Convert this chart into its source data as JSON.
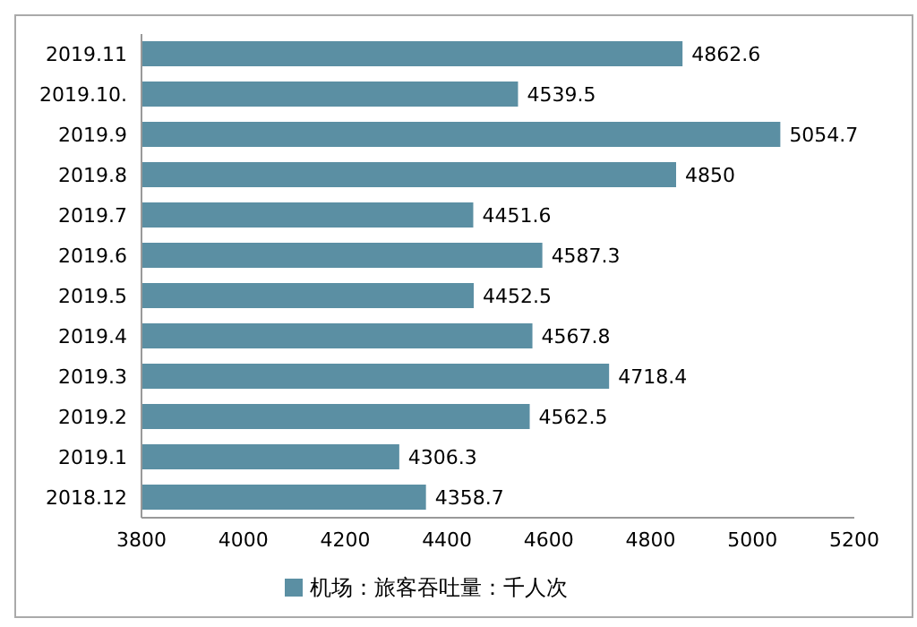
{
  "chart_data": {
    "type": "bar",
    "orientation": "horizontal",
    "categories": [
      "2019.11",
      "2019.10.",
      "2019.9",
      "2019.8",
      "2019.7",
      "2019.6",
      "2019.5",
      "2019.4",
      "2019.3",
      "2019.2",
      "2019.1",
      "2018.12"
    ],
    "series": [
      {
        "name": "机场：旅客吞吐量：千人次",
        "color": "#5b8fa3",
        "values": [
          4862.6,
          4539.5,
          5054.7,
          4850,
          4451.6,
          4587.3,
          4452.5,
          4567.8,
          4718.4,
          4562.5,
          4306.3,
          4358.7
        ]
      }
    ],
    "xlim": [
      3800,
      5200
    ],
    "xticks": [
      3800,
      4000,
      4200,
      4400,
      4600,
      4800,
      5000,
      5200
    ],
    "data_labels": true,
    "grid": false,
    "legend": "bottom"
  }
}
